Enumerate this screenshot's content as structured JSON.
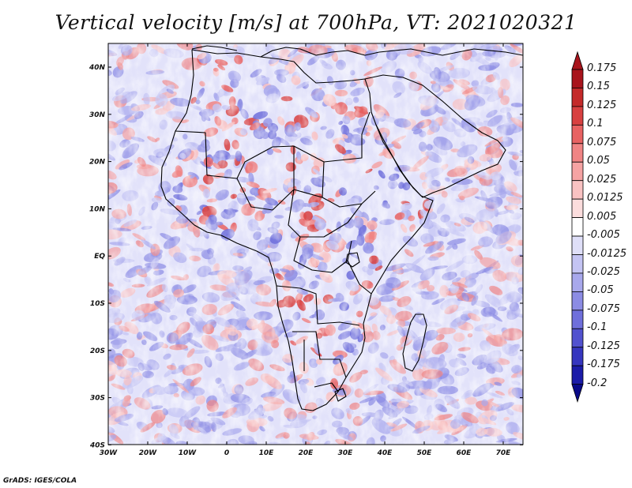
{
  "title": "Vertical velocity [m/s] at 700hPa, VT: 2021020321",
  "credit": "GrADS: IGES/COLA",
  "axes": {
    "lat_labels": [
      "40N",
      "30N",
      "20N",
      "10N",
      "EQ",
      "10S",
      "20S",
      "30S",
      "40S"
    ],
    "lon_labels": [
      "30W",
      "20W",
      "10W",
      "0",
      "10E",
      "20E",
      "30E",
      "40E",
      "50E",
      "60E",
      "70E"
    ]
  },
  "colorbar": {
    "labels": [
      "0.175",
      "0.15",
      "0.125",
      "0.1",
      "0.075",
      "0.05",
      "0.025",
      "0.0125",
      "0.005",
      "-0.005",
      "-0.0125",
      "-0.025",
      "-0.05",
      "-0.075",
      "-0.1",
      "-0.125",
      "-0.175",
      "-0.2"
    ],
    "colors": [
      "#a8141c",
      "#c42a2a",
      "#d84040",
      "#e86262",
      "#f08484",
      "#f5a3a3",
      "#f9c2c2",
      "#fbdddd",
      "#ffffff",
      "#dfdff8",
      "#c4c4f3",
      "#a8a8ec",
      "#8c8ce4",
      "#6f6fdb",
      "#5252cf",
      "#3636bf",
      "#1c1ca8",
      "#0a0a88"
    ]
  },
  "palette": {
    "frame": "#000000",
    "coast": "#000000",
    "land_tint": "#b9b9f0",
    "sea_tint": "#e2e2fa"
  }
}
